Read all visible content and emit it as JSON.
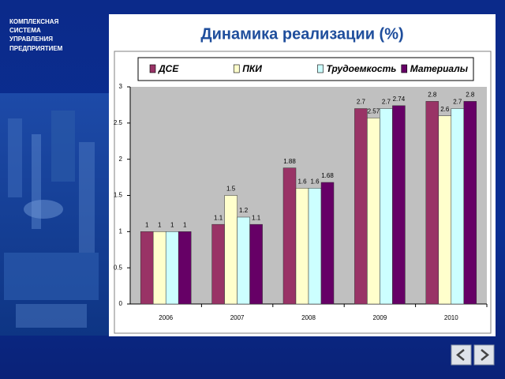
{
  "side_text": [
    "КОМПЛЕКСНАЯ",
    "СИСТЕМА",
    "УПРАВЛЕНИЯ",
    "ПРЕДПРИЯТИЕМ"
  ],
  "chart_data": {
    "type": "bar",
    "title": "Динамика реализации (%)",
    "categories": [
      "2006",
      "2007",
      "2008",
      "2009",
      "2010"
    ],
    "series": [
      {
        "name": "ДСЕ",
        "color": "#993366",
        "values": [
          1,
          1.1,
          1.88,
          2.7,
          2.8
        ]
      },
      {
        "name": "ПКИ",
        "color": "#ffffcc",
        "values": [
          1,
          1.5,
          1.6,
          2.57,
          2.6
        ]
      },
      {
        "name": "Трудоемкость",
        "color": "#ccffff",
        "values": [
          1,
          1.2,
          1.6,
          2.7,
          2.7
        ]
      },
      {
        "name": "Материалы",
        "color": "#660066",
        "values": [
          1,
          1.1,
          1.68,
          2.74,
          2.8
        ]
      }
    ],
    "ylim": [
      0,
      3
    ],
    "yticks": [
      0,
      0.5,
      1,
      1.5,
      2,
      2.5,
      3
    ],
    "grid": false,
    "legend": "top"
  }
}
